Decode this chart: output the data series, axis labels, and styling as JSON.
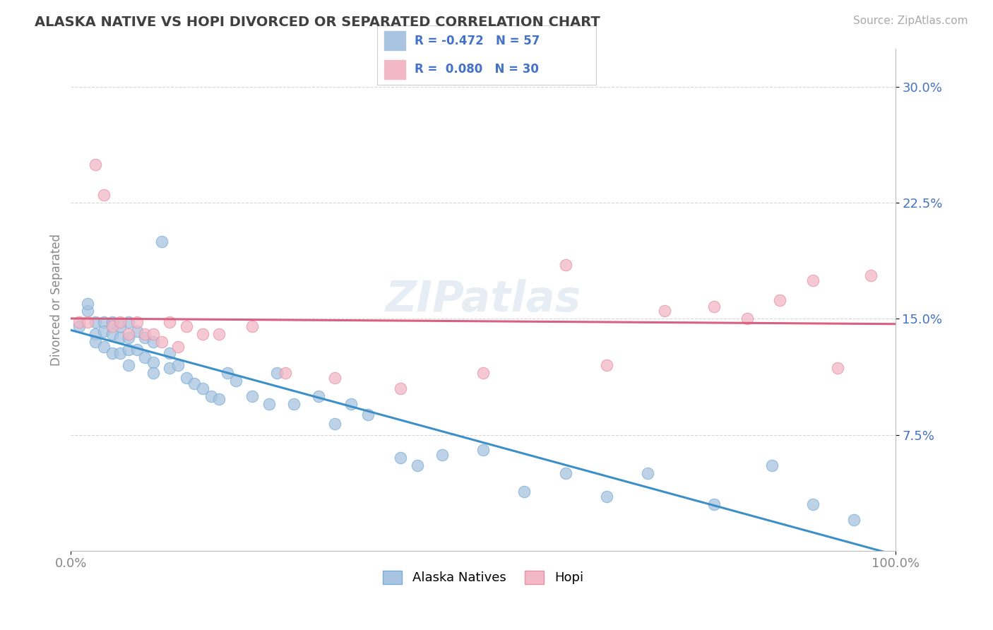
{
  "title": "ALASKA NATIVE VS HOPI DIVORCED OR SEPARATED CORRELATION CHART",
  "source_text": "Source: ZipAtlas.com",
  "ylabel": "Divorced or Separated",
  "xlim": [
    0.0,
    1.0
  ],
  "ylim": [
    0.0,
    0.325
  ],
  "xtick_positions": [
    0.0,
    1.0
  ],
  "xtick_labels": [
    "0.0%",
    "100.0%"
  ],
  "ytick_values": [
    0.075,
    0.15,
    0.225,
    0.3
  ],
  "ytick_labels": [
    "7.5%",
    "15.0%",
    "22.5%",
    "30.0%"
  ],
  "alaska_color": "#a8c4e0",
  "alaska_edge_color": "#7aaed6",
  "hopi_color": "#f2b8c6",
  "hopi_edge_color": "#e890a8",
  "alaska_line_color": "#3d8fc8",
  "hopi_line_color": "#d96080",
  "R_alaska": -0.472,
  "N_alaska": 57,
  "R_hopi": 0.08,
  "N_hopi": 30,
  "legend_text_color": "#4472c4",
  "watermark": "ZIPatlas",
  "alaska_scatter_x": [
    0.01,
    0.02,
    0.02,
    0.03,
    0.03,
    0.03,
    0.04,
    0.04,
    0.04,
    0.05,
    0.05,
    0.05,
    0.06,
    0.06,
    0.06,
    0.07,
    0.07,
    0.07,
    0.07,
    0.08,
    0.08,
    0.09,
    0.09,
    0.1,
    0.1,
    0.1,
    0.11,
    0.12,
    0.12,
    0.13,
    0.14,
    0.15,
    0.16,
    0.17,
    0.18,
    0.19,
    0.2,
    0.22,
    0.24,
    0.25,
    0.27,
    0.3,
    0.32,
    0.34,
    0.36,
    0.4,
    0.42,
    0.45,
    0.5,
    0.55,
    0.6,
    0.65,
    0.7,
    0.78,
    0.85,
    0.9,
    0.95
  ],
  "alaska_scatter_y": [
    0.145,
    0.155,
    0.16,
    0.148,
    0.14,
    0.135,
    0.148,
    0.142,
    0.132,
    0.148,
    0.14,
    0.128,
    0.145,
    0.138,
    0.128,
    0.148,
    0.138,
    0.13,
    0.12,
    0.142,
    0.13,
    0.138,
    0.125,
    0.135,
    0.122,
    0.115,
    0.2,
    0.128,
    0.118,
    0.12,
    0.112,
    0.108,
    0.105,
    0.1,
    0.098,
    0.115,
    0.11,
    0.1,
    0.095,
    0.115,
    0.095,
    0.1,
    0.082,
    0.095,
    0.088,
    0.06,
    0.055,
    0.062,
    0.065,
    0.038,
    0.05,
    0.035,
    0.05,
    0.03,
    0.055,
    0.03,
    0.02
  ],
  "hopi_scatter_x": [
    0.01,
    0.02,
    0.03,
    0.04,
    0.05,
    0.06,
    0.07,
    0.08,
    0.09,
    0.1,
    0.11,
    0.12,
    0.13,
    0.14,
    0.16,
    0.18,
    0.22,
    0.26,
    0.32,
    0.4,
    0.5,
    0.6,
    0.65,
    0.72,
    0.78,
    0.82,
    0.86,
    0.9,
    0.93,
    0.97
  ],
  "hopi_scatter_y": [
    0.148,
    0.148,
    0.25,
    0.23,
    0.145,
    0.148,
    0.14,
    0.148,
    0.14,
    0.14,
    0.135,
    0.148,
    0.132,
    0.145,
    0.14,
    0.14,
    0.145,
    0.115,
    0.112,
    0.105,
    0.115,
    0.185,
    0.12,
    0.155,
    0.158,
    0.15,
    0.162,
    0.175,
    0.118,
    0.178
  ],
  "background_color": "#ffffff",
  "grid_color": "#cccccc",
  "title_color": "#404040",
  "axis_label_color": "#888888"
}
